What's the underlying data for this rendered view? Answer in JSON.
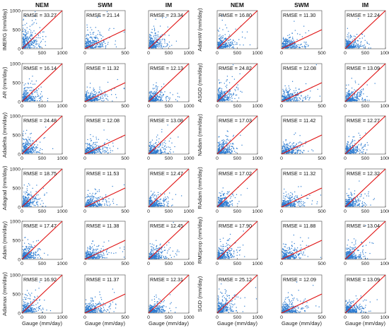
{
  "colors": {
    "points": "#2b7bd1",
    "identity_line": "#e01010"
  },
  "column_titles": [
    "NEM",
    "SWM",
    "IM",
    "NEM",
    "SWM",
    "IM"
  ],
  "x_axis_label": "Gauge (mm/day)",
  "row_labels_left": [
    "IMERG (mm/day)",
    "AR (mm/day)",
    "Adadelta (mm/day)",
    "Adagrad (mm/day)",
    "Adam (mm/day)",
    "Adamax (mm/day)"
  ],
  "row_labels_right": [
    "AdamW (mm/day)",
    "ASGD (mm/day)",
    "NAdam (mm/day)",
    "RAdam (mm/day)",
    "RMSprop (mm/day)",
    "SGD (mm/day)"
  ],
  "chart_data": [
    {
      "type": "scatter",
      "row": 0,
      "col": 0,
      "product": "IMERG",
      "season": "NEM",
      "rmse": "RMSE = 33.27",
      "xlim": [
        0,
        1000
      ],
      "ylim": [
        0,
        1000
      ],
      "xticks": [
        "0",
        "500",
        "1000"
      ],
      "yticks": [
        "0",
        "500",
        "1000"
      ]
    },
    {
      "type": "scatter",
      "row": 0,
      "col": 1,
      "product": "IMERG",
      "season": "SWM",
      "rmse": "RMSE = 21.14",
      "xlim": [
        0,
        500
      ],
      "ylim": [
        0,
        1000
      ],
      "xticks": [
        "0",
        "500"
      ],
      "yticks": []
    },
    {
      "type": "scatter",
      "row": 0,
      "col": 2,
      "product": "IMERG",
      "season": "IM",
      "rmse": "RMSE = 23.34",
      "xlim": [
        0,
        1000
      ],
      "ylim": [
        0,
        1000
      ],
      "xticks": [
        "0",
        "500",
        "1000"
      ],
      "yticks": []
    },
    {
      "type": "scatter",
      "row": 0,
      "col": 3,
      "product": "AdamW",
      "season": "NEM",
      "rmse": "RMSE = 16.80",
      "xlim": [
        0,
        1000
      ],
      "ylim": [
        0,
        1000
      ],
      "xticks": [
        "0",
        "500",
        "1000"
      ],
      "yticks": []
    },
    {
      "type": "scatter",
      "row": 0,
      "col": 4,
      "product": "AdamW",
      "season": "SWM",
      "rmse": "RMSE = 11.30",
      "xlim": [
        0,
        500
      ],
      "ylim": [
        0,
        1000
      ],
      "xticks": [
        "0",
        "500"
      ],
      "yticks": []
    },
    {
      "type": "scatter",
      "row": 0,
      "col": 5,
      "product": "AdamW",
      "season": "IM",
      "rmse": "RMSE = 12.24",
      "xlim": [
        0,
        1000
      ],
      "ylim": [
        0,
        1000
      ],
      "xticks": [
        "0",
        "500",
        "1000"
      ],
      "yticks": []
    },
    {
      "type": "scatter",
      "row": 1,
      "col": 0,
      "product": "AR",
      "season": "NEM",
      "rmse": "RMSE = 16.14",
      "xlim": [
        0,
        1000
      ],
      "ylim": [
        0,
        1000
      ],
      "xticks": [
        "0",
        "500",
        "1000"
      ],
      "yticks": [
        "0",
        "500",
        "1000"
      ]
    },
    {
      "type": "scatter",
      "row": 1,
      "col": 1,
      "product": "AR",
      "season": "SWM",
      "rmse": "RMSE = 11.32",
      "xlim": [
        0,
        500
      ],
      "ylim": [
        0,
        1000
      ],
      "xticks": [
        "0",
        "500"
      ],
      "yticks": []
    },
    {
      "type": "scatter",
      "row": 1,
      "col": 2,
      "product": "AR",
      "season": "IM",
      "rmse": "RMSE = 12.13",
      "xlim": [
        0,
        1000
      ],
      "ylim": [
        0,
        1000
      ],
      "xticks": [
        "0",
        "500",
        "1000"
      ],
      "yticks": []
    },
    {
      "type": "scatter",
      "row": 1,
      "col": 3,
      "product": "ASGD",
      "season": "NEM",
      "rmse": "RMSE = 24.82",
      "xlim": [
        0,
        1000
      ],
      "ylim": [
        0,
        1000
      ],
      "xticks": [
        "0",
        "500",
        "1000"
      ],
      "yticks": []
    },
    {
      "type": "scatter",
      "row": 1,
      "col": 4,
      "product": "ASGD",
      "season": "SWM",
      "rmse": "RMSE = 12.08",
      "xlim": [
        0,
        500
      ],
      "ylim": [
        0,
        1000
      ],
      "xticks": [
        "0",
        "500"
      ],
      "yticks": []
    },
    {
      "type": "scatter",
      "row": 1,
      "col": 5,
      "product": "ASGD",
      "season": "IM",
      "rmse": "RMSE = 13.09",
      "xlim": [
        0,
        1000
      ],
      "ylim": [
        0,
        1000
      ],
      "xticks": [
        "0",
        "500",
        "1000"
      ],
      "yticks": []
    },
    {
      "type": "scatter",
      "row": 2,
      "col": 0,
      "product": "Adadelta",
      "season": "NEM",
      "rmse": "RMSE = 24.48",
      "xlim": [
        0,
        1000
      ],
      "ylim": [
        0,
        1000
      ],
      "xticks": [
        "0",
        "500",
        "1000"
      ],
      "yticks": [
        "0",
        "500",
        "1000"
      ]
    },
    {
      "type": "scatter",
      "row": 2,
      "col": 1,
      "product": "Adadelta",
      "season": "SWM",
      "rmse": "RMSE = 12.08",
      "xlim": [
        0,
        500
      ],
      "ylim": [
        0,
        1000
      ],
      "xticks": [
        "0",
        "500"
      ],
      "yticks": []
    },
    {
      "type": "scatter",
      "row": 2,
      "col": 2,
      "product": "Adadelta",
      "season": "IM",
      "rmse": "RMSE = 13.08",
      "xlim": [
        0,
        1000
      ],
      "ylim": [
        0,
        1000
      ],
      "xticks": [
        "0",
        "500",
        "1000"
      ],
      "yticks": []
    },
    {
      "type": "scatter",
      "row": 2,
      "col": 3,
      "product": "NAdam",
      "season": "NEM",
      "rmse": "RMSE = 17.03",
      "xlim": [
        0,
        1000
      ],
      "ylim": [
        0,
        1000
      ],
      "xticks": [
        "0",
        "500",
        "1000"
      ],
      "yticks": []
    },
    {
      "type": "scatter",
      "row": 2,
      "col": 4,
      "product": "NAdam",
      "season": "SWM",
      "rmse": "RMSE = 11.42",
      "xlim": [
        0,
        500
      ],
      "ylim": [
        0,
        1000
      ],
      "xticks": [
        "0",
        "500"
      ],
      "yticks": []
    },
    {
      "type": "scatter",
      "row": 2,
      "col": 5,
      "product": "NAdam",
      "season": "IM",
      "rmse": "RMSE = 12.27",
      "xlim": [
        0,
        1000
      ],
      "ylim": [
        0,
        1000
      ],
      "xticks": [
        "0",
        "500",
        "1000"
      ],
      "yticks": []
    },
    {
      "type": "scatter",
      "row": 3,
      "col": 0,
      "product": "Adagrad",
      "season": "NEM",
      "rmse": "RMSE = 18.75",
      "xlim": [
        0,
        1000
      ],
      "ylim": [
        0,
        1000
      ],
      "xticks": [
        "0",
        "500",
        "1000"
      ],
      "yticks": [
        "0",
        "500",
        "1000"
      ]
    },
    {
      "type": "scatter",
      "row": 3,
      "col": 1,
      "product": "Adagrad",
      "season": "SWM",
      "rmse": "RMSE = 11.53",
      "xlim": [
        0,
        500
      ],
      "ylim": [
        0,
        1000
      ],
      "xticks": [
        "0",
        "500"
      ],
      "yticks": []
    },
    {
      "type": "scatter",
      "row": 3,
      "col": 2,
      "product": "Adagrad",
      "season": "IM",
      "rmse": "RMSE = 12.47",
      "xlim": [
        0,
        1000
      ],
      "ylim": [
        0,
        1000
      ],
      "xticks": [
        "0",
        "500",
        "1000"
      ],
      "yticks": []
    },
    {
      "type": "scatter",
      "row": 3,
      "col": 3,
      "product": "RAdam",
      "season": "NEM",
      "rmse": "RMSE = 17.02",
      "xlim": [
        0,
        1000
      ],
      "ylim": [
        0,
        1000
      ],
      "xticks": [
        "0",
        "500",
        "1000"
      ],
      "yticks": []
    },
    {
      "type": "scatter",
      "row": 3,
      "col": 4,
      "product": "RAdam",
      "season": "SWM",
      "rmse": "RMSE = 11.32",
      "xlim": [
        0,
        500
      ],
      "ylim": [
        0,
        1000
      ],
      "xticks": [
        "0",
        "500"
      ],
      "yticks": []
    },
    {
      "type": "scatter",
      "row": 3,
      "col": 5,
      "product": "RAdam",
      "season": "IM",
      "rmse": "RMSE = 12.32",
      "xlim": [
        0,
        1000
      ],
      "ylim": [
        0,
        1000
      ],
      "xticks": [
        "0",
        "500",
        "1000"
      ],
      "yticks": []
    },
    {
      "type": "scatter",
      "row": 4,
      "col": 0,
      "product": "Adam",
      "season": "NEM",
      "rmse": "RMSE = 17.47",
      "xlim": [
        0,
        1000
      ],
      "ylim": [
        0,
        1000
      ],
      "xticks": [
        "0",
        "500",
        "1000"
      ],
      "yticks": [
        "0",
        "500",
        "1000"
      ]
    },
    {
      "type": "scatter",
      "row": 4,
      "col": 1,
      "product": "Adam",
      "season": "SWM",
      "rmse": "RMSE = 11.38",
      "xlim": [
        0,
        500
      ],
      "ylim": [
        0,
        1000
      ],
      "xticks": [
        "0",
        "500"
      ],
      "yticks": []
    },
    {
      "type": "scatter",
      "row": 4,
      "col": 2,
      "product": "Adam",
      "season": "IM",
      "rmse": "RMSE = 12.45",
      "xlim": [
        0,
        1000
      ],
      "ylim": [
        0,
        1000
      ],
      "xticks": [
        "0",
        "500",
        "1000"
      ],
      "yticks": []
    },
    {
      "type": "scatter",
      "row": 4,
      "col": 3,
      "product": "RMSprop",
      "season": "NEM",
      "rmse": "RMSE = 17.90",
      "xlim": [
        0,
        1000
      ],
      "ylim": [
        0,
        1000
      ],
      "xticks": [
        "0",
        "500",
        "1000"
      ],
      "yticks": []
    },
    {
      "type": "scatter",
      "row": 4,
      "col": 4,
      "product": "RMSprop",
      "season": "SWM",
      "rmse": "RMSE = 11.88",
      "xlim": [
        0,
        500
      ],
      "ylim": [
        0,
        1000
      ],
      "xticks": [
        "0",
        "500"
      ],
      "yticks": []
    },
    {
      "type": "scatter",
      "row": 4,
      "col": 5,
      "product": "RMSprop",
      "season": "IM",
      "rmse": "RMSE = 13.04",
      "xlim": [
        0,
        1000
      ],
      "ylim": [
        0,
        1000
      ],
      "xticks": [
        "0",
        "500",
        "1000"
      ],
      "yticks": []
    },
    {
      "type": "scatter",
      "row": 5,
      "col": 0,
      "product": "Adamax",
      "season": "NEM",
      "rmse": "RMSE = 16.92",
      "xlim": [
        0,
        1000
      ],
      "ylim": [
        0,
        1000
      ],
      "xticks": [
        "0",
        "500",
        "1000"
      ],
      "yticks": [
        "0",
        "500",
        "1000"
      ]
    },
    {
      "type": "scatter",
      "row": 5,
      "col": 1,
      "product": "Adamax",
      "season": "SWM",
      "rmse": "RMSE = 11.37",
      "xlim": [
        0,
        500
      ],
      "ylim": [
        0,
        1000
      ],
      "xticks": [
        "0",
        "500"
      ],
      "yticks": []
    },
    {
      "type": "scatter",
      "row": 5,
      "col": 2,
      "product": "Adamax",
      "season": "IM",
      "rmse": "RMSE = 12.31",
      "xlim": [
        0,
        1000
      ],
      "ylim": [
        0,
        1000
      ],
      "xticks": [
        "0",
        "500",
        "1000"
      ],
      "yticks": []
    },
    {
      "type": "scatter",
      "row": 5,
      "col": 3,
      "product": "SGD",
      "season": "NEM",
      "rmse": "RMSE = 25.12",
      "xlim": [
        0,
        1000
      ],
      "ylim": [
        0,
        1000
      ],
      "xticks": [
        "0",
        "500",
        "1000"
      ],
      "yticks": []
    },
    {
      "type": "scatter",
      "row": 5,
      "col": 4,
      "product": "SGD",
      "season": "SWM",
      "rmse": "RMSE = 12.09",
      "xlim": [
        0,
        500
      ],
      "ylim": [
        0,
        1000
      ],
      "xticks": [
        "0",
        "500"
      ],
      "yticks": []
    },
    {
      "type": "scatter",
      "row": 5,
      "col": 5,
      "product": "SGD",
      "season": "IM",
      "rmse": "RMSE = 13.09",
      "xlim": [
        0,
        1000
      ],
      "ylim": [
        0,
        1000
      ],
      "xticks": [
        "0",
        "500",
        "1000"
      ],
      "yticks": []
    }
  ]
}
